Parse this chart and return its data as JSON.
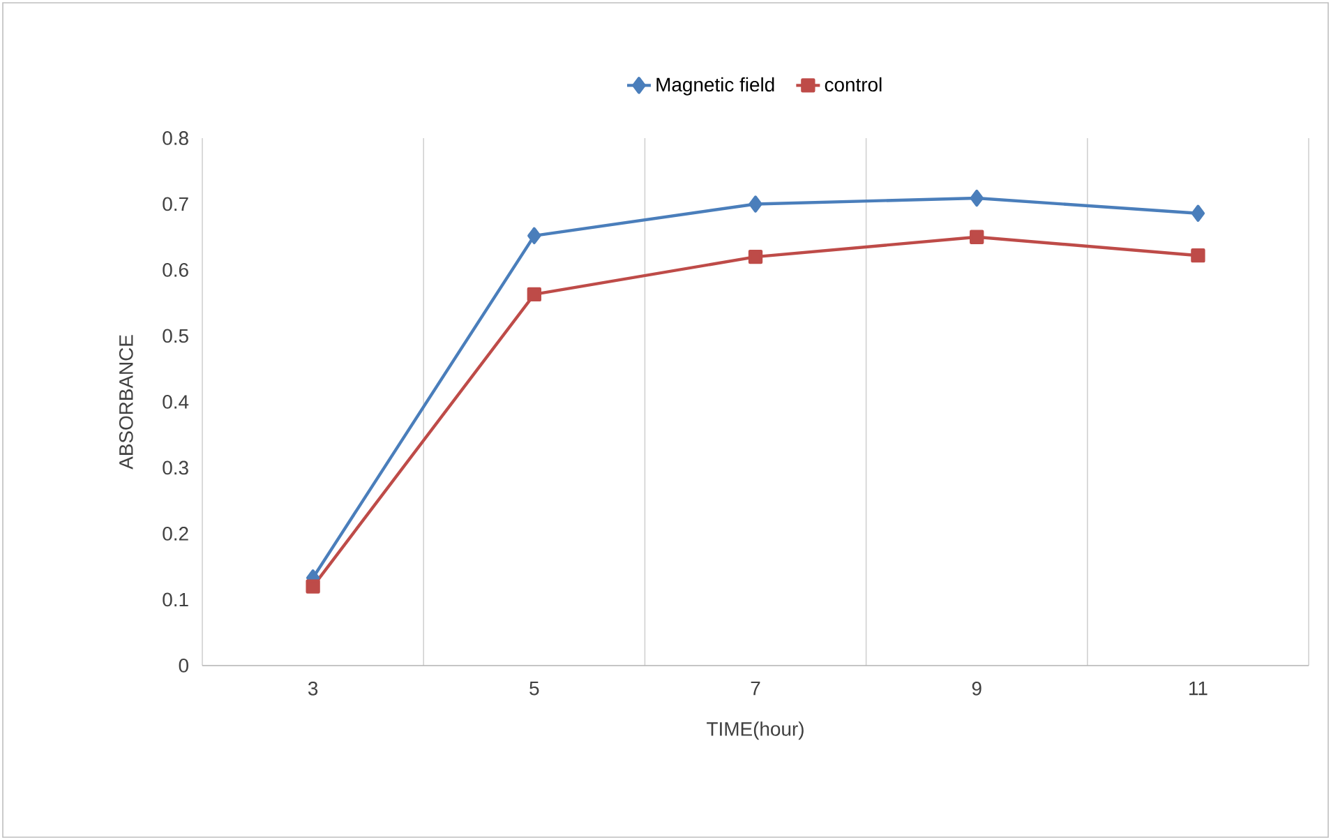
{
  "chart_data": {
    "type": "line",
    "xlabel": "TIME(hour)",
    "ylabel": "ABSORBANCE",
    "categories": [
      "3",
      "5",
      "7",
      "9",
      "11"
    ],
    "series": [
      {
        "name": "Magnetic field",
        "color": "#4a7ebb",
        "marker": "diamond",
        "values": [
          0.133,
          0.652,
          0.7,
          0.709,
          0.686
        ]
      },
      {
        "name": "control",
        "color": "#be4b48",
        "marker": "square",
        "values": [
          0.12,
          0.563,
          0.62,
          0.65,
          0.622
        ]
      }
    ],
    "ylim": [
      0,
      0.8
    ],
    "yticks": [
      0,
      0.1,
      0.2,
      0.3,
      0.4,
      0.5,
      0.6,
      0.7,
      0.8
    ],
    "grid": "x",
    "legend": "top"
  }
}
